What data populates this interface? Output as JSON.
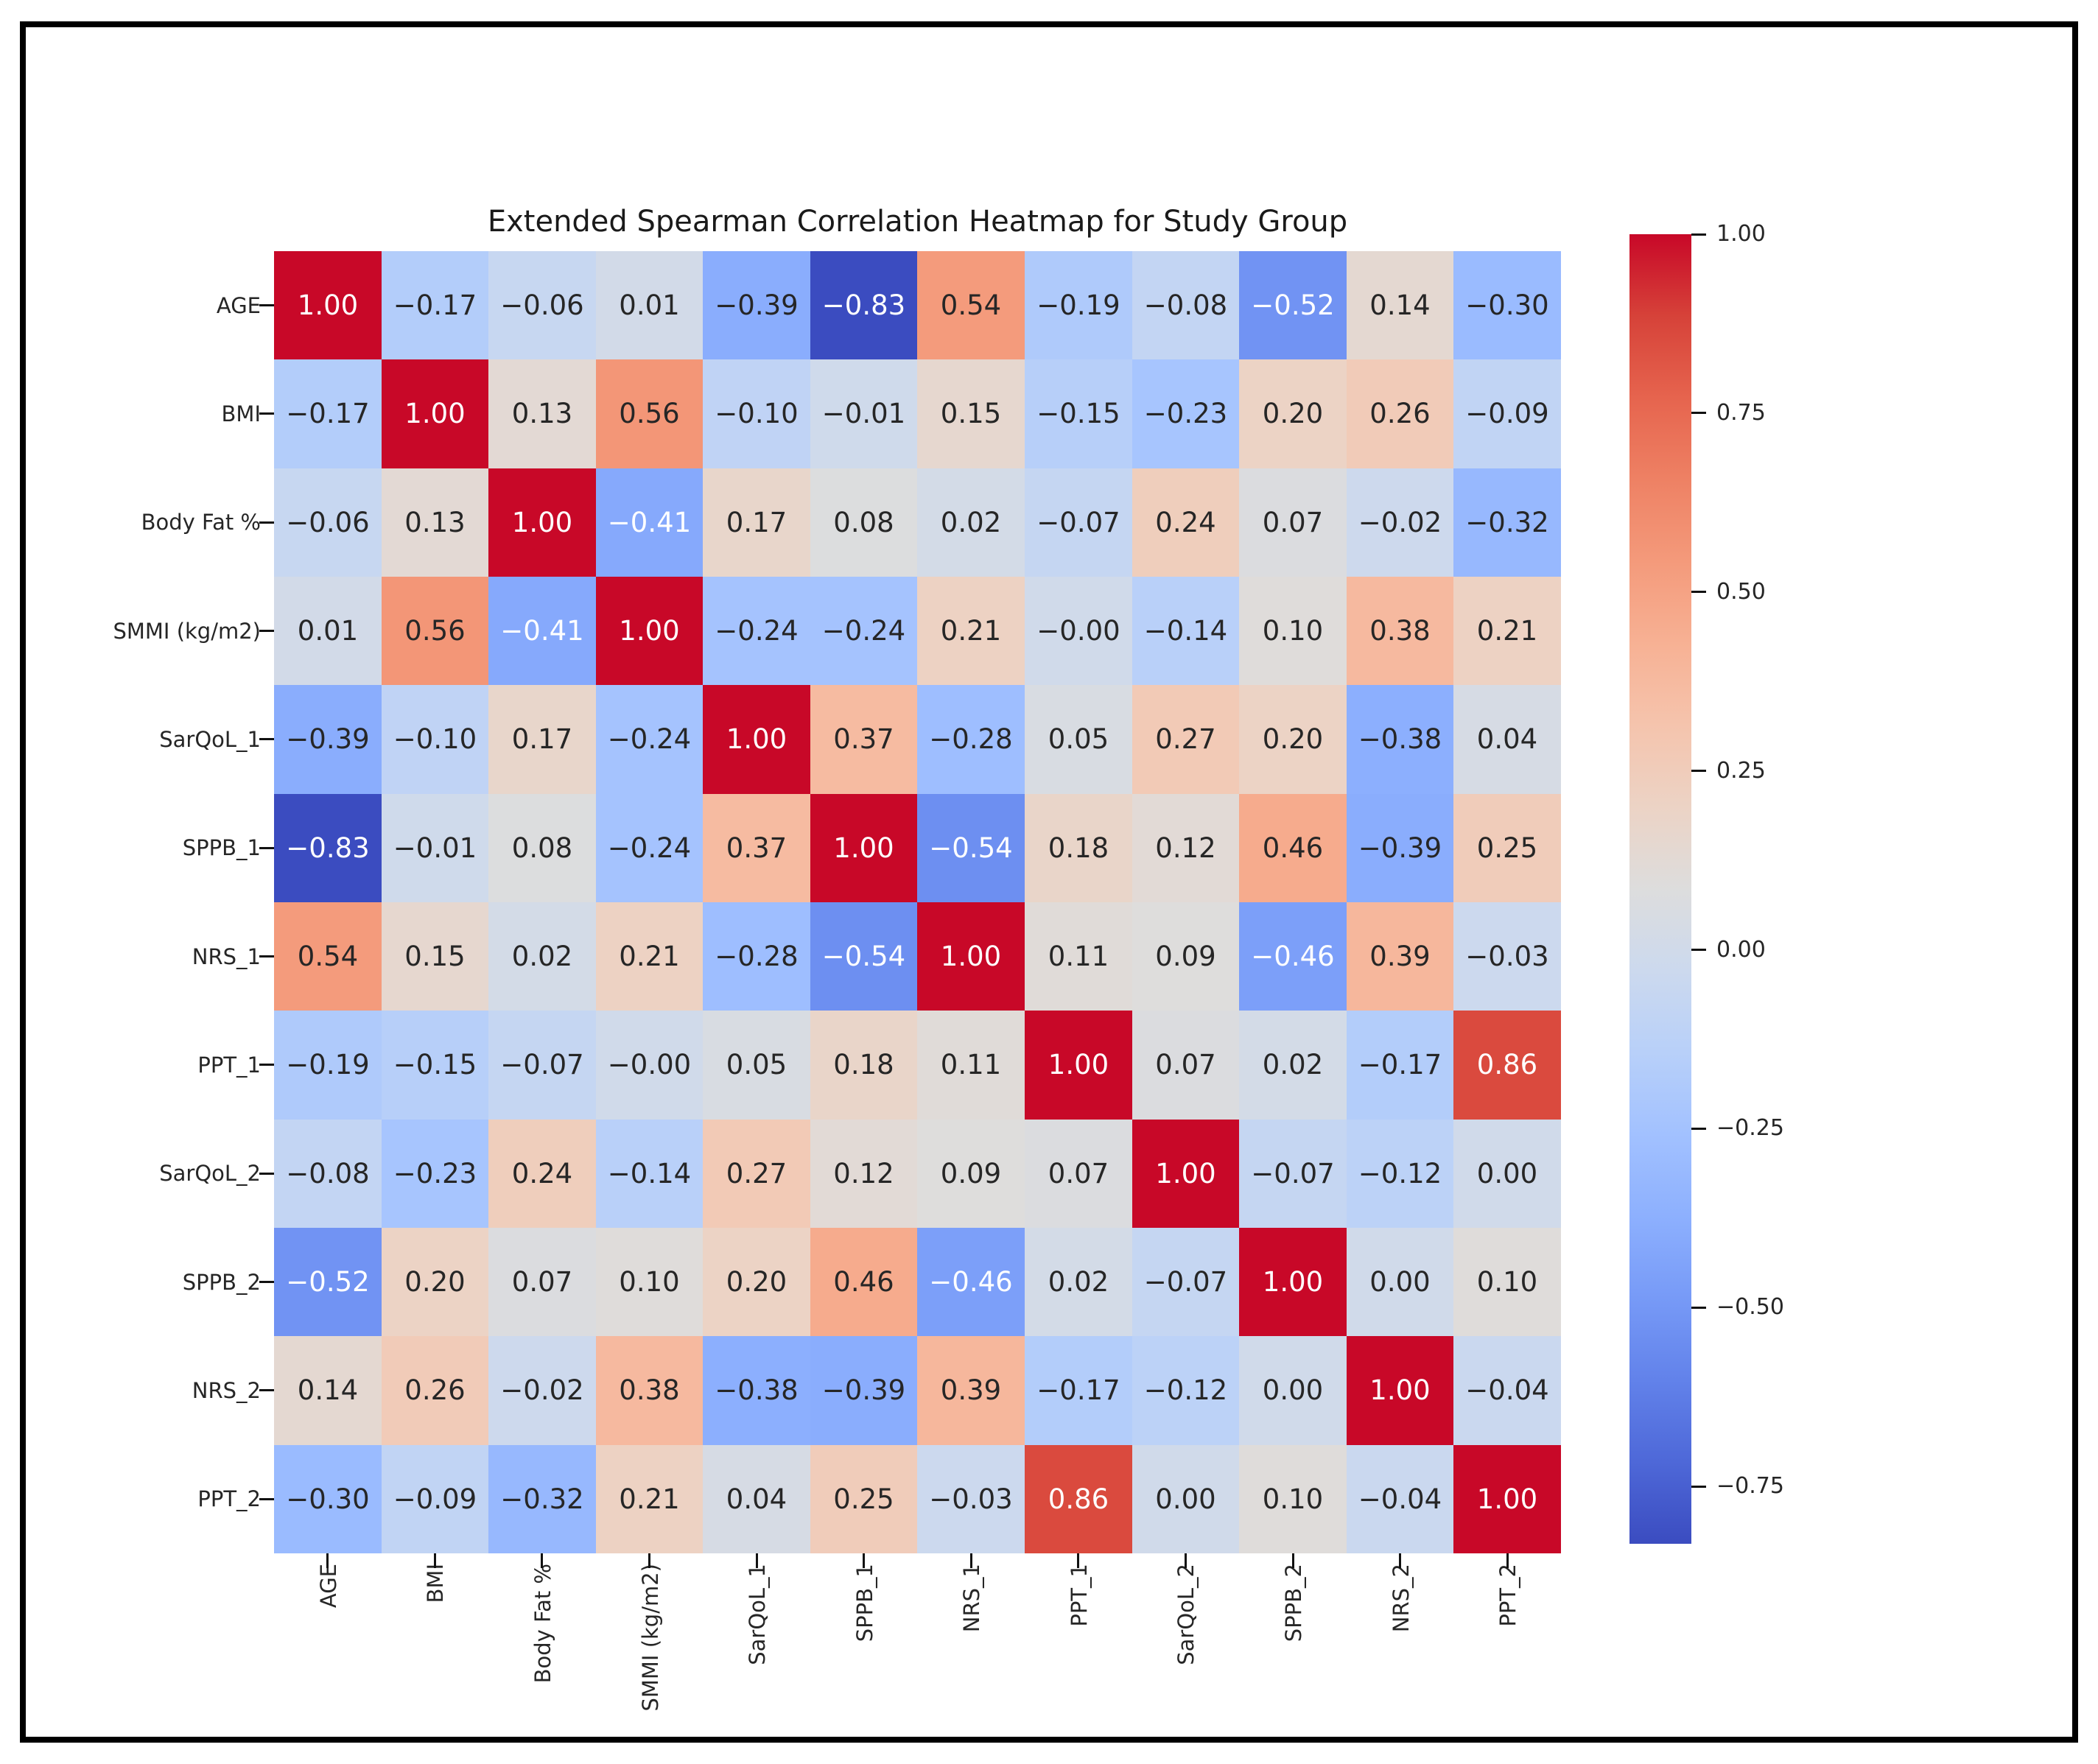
{
  "chart_data": {
    "type": "heatmap",
    "title": "Extended Spearman Correlation Heatmap for Study Group",
    "variables": [
      "AGE",
      "BMI",
      "Body Fat %",
      "SMMI (kg/m2)",
      "SarQoL_1",
      "SPPB_1",
      "NRS_1",
      "PPT_1",
      "SarQoL_2",
      "SPPB_2",
      "NRS_2",
      "PPT_2"
    ],
    "matrix": [
      [
        "1.00",
        "−0.17",
        "−0.06",
        "0.01",
        "−0.39",
        "−0.83",
        "0.54",
        "−0.19",
        "−0.08",
        "−0.52",
        "0.14",
        "−0.30"
      ],
      [
        "−0.17",
        "1.00",
        "0.13",
        "0.56",
        "−0.10",
        "−0.01",
        "0.15",
        "−0.15",
        "−0.23",
        "0.20",
        "0.26",
        "−0.09"
      ],
      [
        "−0.06",
        "0.13",
        "1.00",
        "−0.41",
        "0.17",
        "0.08",
        "0.02",
        "−0.07",
        "0.24",
        "0.07",
        "−0.02",
        "−0.32"
      ],
      [
        "0.01",
        "0.56",
        "−0.41",
        "1.00",
        "−0.24",
        "−0.24",
        "0.21",
        "−0.00",
        "−0.14",
        "0.10",
        "0.38",
        "0.21"
      ],
      [
        "−0.39",
        "−0.10",
        "0.17",
        "−0.24",
        "1.00",
        "0.37",
        "−0.28",
        "0.05",
        "0.27",
        "0.20",
        "−0.38",
        "0.04"
      ],
      [
        "−0.83",
        "−0.01",
        "0.08",
        "−0.24",
        "0.37",
        "1.00",
        "−0.54",
        "0.18",
        "0.12",
        "0.46",
        "−0.39",
        "0.25"
      ],
      [
        "0.54",
        "0.15",
        "0.02",
        "0.21",
        "−0.28",
        "−0.54",
        "1.00",
        "0.11",
        "0.09",
        "−0.46",
        "0.39",
        "−0.03"
      ],
      [
        "−0.19",
        "−0.15",
        "−0.07",
        "−0.00",
        "0.05",
        "0.18",
        "0.11",
        "1.00",
        "0.07",
        "0.02",
        "−0.17",
        "0.86"
      ],
      [
        "−0.08",
        "−0.23",
        "0.24",
        "−0.14",
        "0.27",
        "0.12",
        "0.09",
        "0.07",
        "1.00",
        "−0.07",
        "−0.12",
        "0.00"
      ],
      [
        "−0.52",
        "0.20",
        "0.07",
        "0.10",
        "0.20",
        "0.46",
        "−0.46",
        "0.02",
        "−0.07",
        "1.00",
        "0.00",
        "0.10"
      ],
      [
        "0.14",
        "0.26",
        "−0.02",
        "0.38",
        "−0.38",
        "−0.39",
        "0.39",
        "−0.17",
        "−0.12",
        "0.00",
        "1.00",
        "−0.04"
      ],
      [
        "−0.30",
        "−0.09",
        "−0.32",
        "0.21",
        "0.04",
        "0.25",
        "−0.03",
        "0.86",
        "0.00",
        "0.10",
        "−0.04",
        "1.00"
      ]
    ],
    "colorbar": {
      "tick_labels": [
        "1.00",
        "0.75",
        "0.50",
        "0.25",
        "0.00",
        "−0.25",
        "−0.50",
        "−0.75"
      ],
      "tick_values": [
        1.0,
        0.75,
        0.5,
        0.25,
        0.0,
        -0.25,
        -0.5,
        -0.75
      ],
      "vmin": -0.83,
      "vmax": 1.0,
      "colormap": "coolwarm",
      "stops": [
        {
          "t": 0.0,
          "color": "#3B4CC0"
        },
        {
          "t": 0.0625,
          "color": "#4E68D8"
        },
        {
          "t": 0.125,
          "color": "#6282EA"
        },
        {
          "t": 0.1875,
          "color": "#779AF7"
        },
        {
          "t": 0.25,
          "color": "#8DB0FE"
        },
        {
          "t": 0.3125,
          "color": "#A2C1FF"
        },
        {
          "t": 0.375,
          "color": "#B8D0F9"
        },
        {
          "t": 0.4375,
          "color": "#CCD9EE"
        },
        {
          "t": 0.5,
          "color": "#DDDDDD"
        },
        {
          "t": 0.5625,
          "color": "#ECD3C5"
        },
        {
          "t": 0.625,
          "color": "#F5C4AD"
        },
        {
          "t": 0.6875,
          "color": "#F7B194"
        },
        {
          "t": 0.75,
          "color": "#F49A7B"
        },
        {
          "t": 0.8125,
          "color": "#EE8164"
        },
        {
          "t": 0.875,
          "color": "#E6644E"
        },
        {
          "t": 0.9375,
          "color": "#D64239"
        },
        {
          "t": 1.0,
          "color": "#C80828"
        }
      ]
    },
    "annot_text_dark": "#262626",
    "annot_text_light": "#ffffff",
    "title_color": "#1a1a1a",
    "label_color": "#262626",
    "frame_color": "#000000",
    "layout_hints": {
      "legend_position": "right-colorbar",
      "grid": false,
      "x_tick_rotation_deg": 90
    }
  }
}
